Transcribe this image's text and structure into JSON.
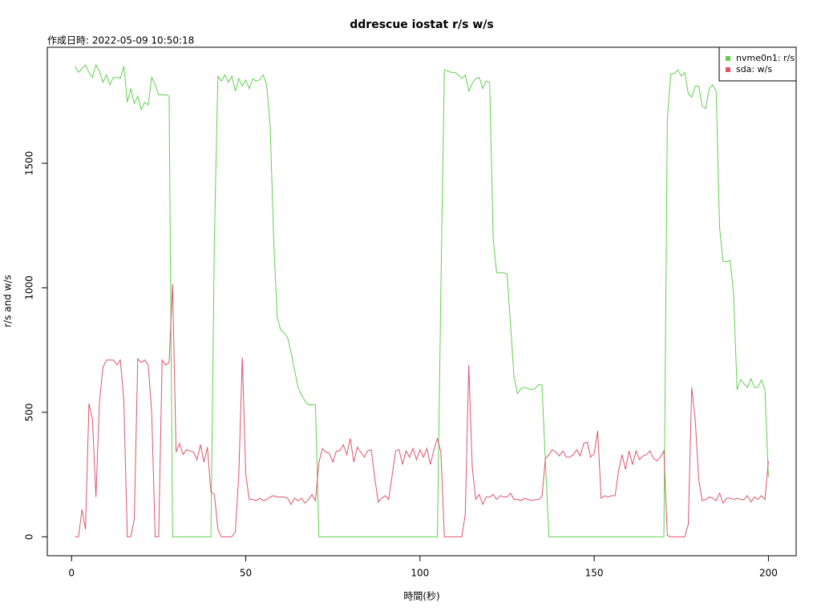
{
  "chart_data": {
    "type": "line",
    "title": "ddrescue iostat r/s w/s",
    "subtitle": "作成日時: 2022-05-09 10:50:18",
    "x_label": "時間(秒)",
    "y_label": "r/s and w/s",
    "x": [
      1,
      2,
      3,
      4,
      5,
      6,
      7,
      8,
      9,
      10,
      11,
      12,
      13,
      14,
      15,
      16,
      17,
      18,
      19,
      20,
      21,
      22,
      23,
      24,
      25,
      26,
      27,
      28,
      29,
      30,
      31,
      32,
      33,
      34,
      35,
      36,
      37,
      38,
      39,
      40,
      41,
      42,
      43,
      44,
      45,
      46,
      47,
      48,
      49,
      50,
      51,
      52,
      53,
      54,
      55,
      56,
      57,
      58,
      59,
      60,
      61,
      62,
      63,
      64,
      65,
      66,
      67,
      68,
      69,
      70,
      71,
      72,
      73,
      74,
      75,
      76,
      77,
      78,
      79,
      80,
      81,
      82,
      83,
      84,
      85,
      86,
      87,
      88,
      89,
      90,
      91,
      92,
      93,
      94,
      95,
      96,
      97,
      98,
      99,
      100,
      101,
      102,
      103,
      104,
      105,
      106,
      107,
      108,
      109,
      110,
      111,
      112,
      113,
      114,
      115,
      116,
      117,
      118,
      119,
      120,
      121,
      122,
      123,
      124,
      125,
      126,
      127,
      128,
      129,
      130,
      131,
      132,
      133,
      134,
      135,
      136,
      137,
      138,
      139,
      140,
      141,
      142,
      143,
      144,
      145,
      146,
      147,
      148,
      149,
      150,
      151,
      152,
      153,
      154,
      155,
      156,
      157,
      158,
      159,
      160,
      161,
      162,
      163,
      164,
      165,
      166,
      167,
      168,
      169,
      170,
      171,
      172,
      173,
      174,
      175,
      176,
      177,
      178,
      179,
      180,
      181,
      182,
      183,
      184,
      185,
      186,
      187,
      188,
      189,
      190,
      191,
      192,
      193,
      194,
      195,
      196,
      197,
      198,
      199,
      200
    ],
    "series": [
      {
        "name": "nvme0n1: r/s",
        "color": "#61D04F",
        "values": [
          1890,
          1865,
          1880,
          1895,
          1865,
          1845,
          1895,
          1870,
          1825,
          1855,
          1815,
          1845,
          1845,
          1840,
          1890,
          1745,
          1800,
          1740,
          1770,
          1715,
          1745,
          1735,
          1845,
          1815,
          1775,
          1775,
          1775,
          1770,
          0,
          0,
          0,
          0,
          0,
          0,
          0,
          0,
          0,
          0,
          0,
          0,
          1200,
          1850,
          1830,
          1855,
          1825,
          1850,
          1790,
          1840,
          1810,
          1835,
          1800,
          1840,
          1830,
          1835,
          1855,
          1815,
          1650,
          1200,
          885,
          830,
          820,
          800,
          740,
          670,
          600,
          570,
          545,
          530,
          530,
          530,
          0,
          0,
          0,
          0,
          0,
          0,
          0,
          0,
          0,
          0,
          0,
          0,
          0,
          0,
          0,
          0,
          0,
          0,
          0,
          0,
          0,
          0,
          0,
          0,
          0,
          0,
          0,
          0,
          0,
          0,
          0,
          0,
          0,
          0,
          0,
          1000,
          1875,
          1870,
          1865,
          1865,
          1855,
          1840,
          1855,
          1790,
          1820,
          1840,
          1845,
          1800,
          1830,
          1825,
          1200,
          1060,
          1060,
          1060,
          1055,
          850,
          640,
          575,
          595,
          600,
          595,
          590,
          595,
          610,
          610,
          300,
          0,
          0,
          0,
          0,
          0,
          0,
          0,
          0,
          0,
          0,
          0,
          0,
          0,
          0,
          0,
          0,
          0,
          0,
          0,
          0,
          0,
          0,
          0,
          0,
          0,
          0,
          0,
          0,
          0,
          0,
          0,
          0,
          0,
          0,
          1680,
          1860,
          1860,
          1875,
          1850,
          1865,
          1780,
          1765,
          1810,
          1810,
          1730,
          1720,
          1800,
          1815,
          1790,
          1240,
          1105,
          1105,
          1110,
          980,
          590,
          630,
          615,
          600,
          635,
          600,
          600,
          630,
          590,
          240
        ]
      },
      {
        "name": "sda: w/s",
        "color": "#DF536B",
        "values": [
          0,
          0,
          110,
          30,
          535,
          470,
          160,
          540,
          680,
          710,
          710,
          710,
          690,
          710,
          550,
          0,
          0,
          70,
          715,
          700,
          710,
          690,
          500,
          0,
          0,
          710,
          690,
          700,
          1015,
          340,
          375,
          330,
          350,
          345,
          340,
          310,
          370,
          300,
          360,
          180,
          170,
          30,
          0,
          0,
          0,
          0,
          20,
          250,
          720,
          250,
          150,
          150,
          145,
          155,
          145,
          150,
          160,
          165,
          160,
          160,
          160,
          155,
          130,
          155,
          145,
          155,
          135,
          150,
          170,
          145,
          300,
          355,
          340,
          335,
          300,
          345,
          345,
          370,
          330,
          395,
          300,
          360,
          340,
          320,
          345,
          350,
          240,
          140,
          155,
          165,
          150,
          245,
          345,
          350,
          290,
          345,
          320,
          355,
          310,
          350,
          320,
          355,
          290,
          350,
          395,
          340,
          0,
          0,
          0,
          0,
          0,
          0,
          90,
          690,
          280,
          150,
          170,
          130,
          160,
          160,
          170,
          150,
          165,
          160,
          160,
          175,
          150,
          150,
          145,
          155,
          150,
          145,
          150,
          150,
          160,
          315,
          330,
          350,
          340,
          325,
          345,
          320,
          320,
          330,
          350,
          325,
          375,
          380,
          320,
          335,
          425,
          155,
          165,
          160,
          165,
          165,
          265,
          330,
          270,
          345,
          290,
          345,
          310,
          325,
          330,
          345,
          315,
          305,
          320,
          345,
          5,
          0,
          0,
          0,
          0,
          0,
          50,
          600,
          470,
          230,
          145,
          150,
          160,
          155,
          145,
          175,
          135,
          155,
          155,
          150,
          155,
          150,
          150,
          165,
          140,
          160,
          150,
          165,
          150,
          305
        ]
      }
    ],
    "xlim": [
      -6.96,
      207.96
    ],
    "xticks": [
      0,
      50,
      100,
      150,
      200
    ],
    "ylim": [
      -76,
      1966
    ],
    "yticks": [
      0,
      500,
      1000,
      1500
    ],
    "legend": "top-right"
  }
}
